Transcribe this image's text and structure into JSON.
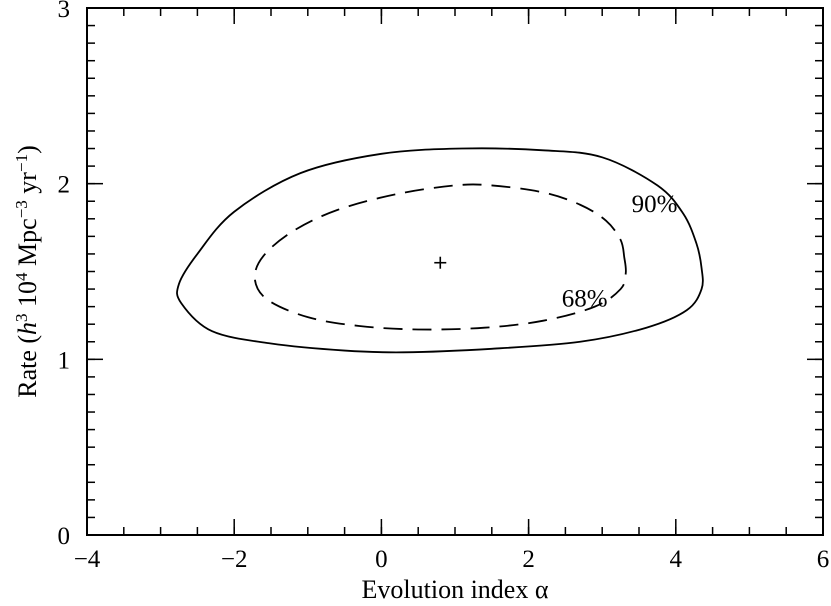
{
  "chart_data": {
    "type": "contour",
    "xlabel": "Evolution index α",
    "ylabel": {
      "prefix": "Rate  (",
      "h": "h",
      "h_exp": "3",
      "ten": " 10",
      "ten_exp": "4",
      "mpc": " Mpc",
      "mpc_exp": "−3",
      "yr": " yr",
      "yr_exp": "−1",
      "suffix": ")"
    },
    "xlim": [
      -4,
      6
    ],
    "ylim": [
      0,
      3
    ],
    "x_ticks": [
      {
        "value": -4,
        "label": "−4"
      },
      {
        "value": -2,
        "label": "−2"
      },
      {
        "value": 0,
        "label": "0"
      },
      {
        "value": 2,
        "label": "2"
      },
      {
        "value": 4,
        "label": "4"
      },
      {
        "value": 6,
        "label": "6"
      }
    ],
    "y_ticks": [
      {
        "value": 0,
        "label": "0"
      },
      {
        "value": 1,
        "label": "1"
      },
      {
        "value": 2,
        "label": "2"
      },
      {
        "value": 3,
        "label": "3"
      }
    ],
    "x_minor_step": 0.5,
    "y_minor_step": 0.1,
    "best_fit": {
      "x": 0.8,
      "y": 1.55
    },
    "contours": [
      {
        "label": "90%",
        "style": "solid",
        "label_at": {
          "x": 3.4,
          "y": 1.84
        },
        "points": [
          [
            4.35,
            1.52
          ],
          [
            4.28,
            1.66
          ],
          [
            4.1,
            1.83
          ],
          [
            3.75,
            1.99
          ],
          [
            3.0,
            2.15
          ],
          [
            2.2,
            2.19
          ],
          [
            1.1,
            2.2
          ],
          [
            0.0,
            2.17
          ],
          [
            -1.1,
            2.06
          ],
          [
            -2.0,
            1.84
          ],
          [
            -2.5,
            1.6
          ],
          [
            -2.75,
            1.43
          ],
          [
            -2.72,
            1.32
          ],
          [
            -2.3,
            1.16
          ],
          [
            -1.5,
            1.09
          ],
          [
            -0.5,
            1.05
          ],
          [
            0.3,
            1.04
          ],
          [
            1.5,
            1.06
          ],
          [
            2.7,
            1.1
          ],
          [
            3.6,
            1.18
          ],
          [
            4.15,
            1.28
          ],
          [
            4.35,
            1.4
          ]
        ]
      },
      {
        "label": "68%",
        "style": "dashed",
        "label_at": {
          "x": 2.45,
          "y": 1.3
        },
        "points": [
          [
            3.3,
            1.58
          ],
          [
            3.25,
            1.68
          ],
          [
            3.05,
            1.79
          ],
          [
            2.7,
            1.88
          ],
          [
            2.2,
            1.95
          ],
          [
            1.5,
            1.99
          ],
          [
            1.0,
            1.99
          ],
          [
            0.2,
            1.94
          ],
          [
            -0.6,
            1.85
          ],
          [
            -1.2,
            1.73
          ],
          [
            -1.6,
            1.59
          ],
          [
            -1.72,
            1.46
          ],
          [
            -1.55,
            1.34
          ],
          [
            -1.0,
            1.24
          ],
          [
            -0.3,
            1.19
          ],
          [
            0.5,
            1.17
          ],
          [
            1.4,
            1.18
          ],
          [
            2.2,
            1.22
          ],
          [
            2.9,
            1.3
          ],
          [
            3.25,
            1.4
          ],
          [
            3.32,
            1.49
          ]
        ]
      }
    ]
  }
}
